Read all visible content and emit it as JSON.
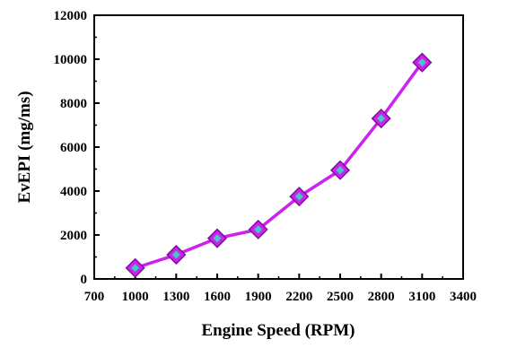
{
  "chart_data": {
    "type": "line",
    "title": "",
    "xlabel": "Engine Speed (RPM)",
    "ylabel": "EvEPI (mg/ms)",
    "xlim": [
      700,
      3400
    ],
    "ylim": [
      0,
      12000
    ],
    "x_ticks": [
      "700",
      "1000",
      "1300",
      "1600",
      "1900",
      "2200",
      "2500",
      "2800",
      "3100",
      "3400"
    ],
    "y_ticks": [
      "0",
      "2000",
      "4000",
      "6000",
      "8000",
      "10000",
      "12000"
    ],
    "grid": false,
    "legend": "none",
    "series": [
      {
        "x": [
          1000,
          1300,
          1600,
          1900,
          2200,
          2500,
          2800,
          3100
        ],
        "y": [
          500,
          1100,
          1850,
          2250,
          3750,
          4950,
          7300,
          9850
        ]
      }
    ],
    "colors": {
      "line": "#cc22ee",
      "marker_outer": "#cc22ee",
      "marker_edge": "#7a1096",
      "marker_inner": "#46c6c6",
      "axis": "#000000"
    }
  }
}
